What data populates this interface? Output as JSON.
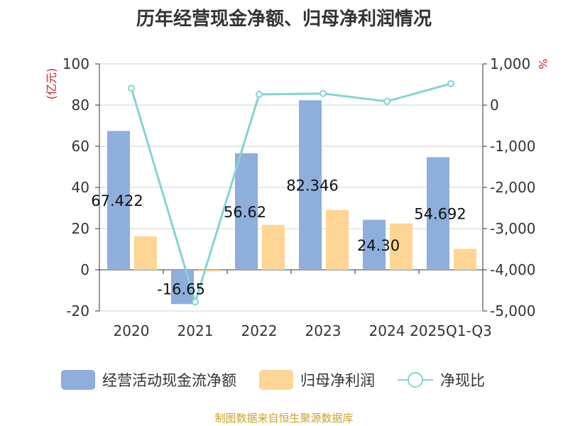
{
  "source_note": "制图数据来自恒生聚源数据库",
  "chart_data": {
    "type": "bar",
    "title": "历年经营现金净额、归母净利润情况",
    "left_axis_unit": "(亿元)",
    "right_axis_unit": "%",
    "categories": [
      "2020",
      "2021",
      "2022",
      "2023",
      "2024",
      "2025Q1-Q3"
    ],
    "ylim_left": [
      -20,
      100
    ],
    "yticks_left": [
      -20,
      0,
      20,
      40,
      60,
      80,
      100
    ],
    "ylim_right": [
      -5000,
      1000
    ],
    "yticks_right": [
      -5000,
      -4000,
      -3000,
      -2000,
      -1000,
      0,
      1000
    ],
    "ytick_labels_right": [
      "-5,000",
      "-4,000",
      "-3,000",
      "-2,000",
      "-1,000",
      "0",
      "1,000"
    ],
    "grid": true,
    "legend_position": "bottom",
    "series": [
      {
        "name": "经营活动现金流净额",
        "type": "bar",
        "axis": "left",
        "color": "#8eaedb",
        "values": [
          67.422,
          -16.65,
          56.62,
          82.346,
          24.3,
          54.692
        ],
        "labels": [
          "67.422",
          "-16.65",
          "56.62",
          "82.346",
          "24.30",
          "54.692"
        ]
      },
      {
        "name": "归母净利润",
        "type": "bar",
        "axis": "left",
        "color": "#fed594",
        "values": [
          16.3,
          -0.8,
          21.8,
          29.1,
          22.5,
          10.2
        ]
      },
      {
        "name": "净现比",
        "type": "line",
        "axis": "right",
        "color": "#84d4d4",
        "values": [
          410,
          -4780,
          260,
          280,
          90,
          520
        ]
      }
    ]
  }
}
